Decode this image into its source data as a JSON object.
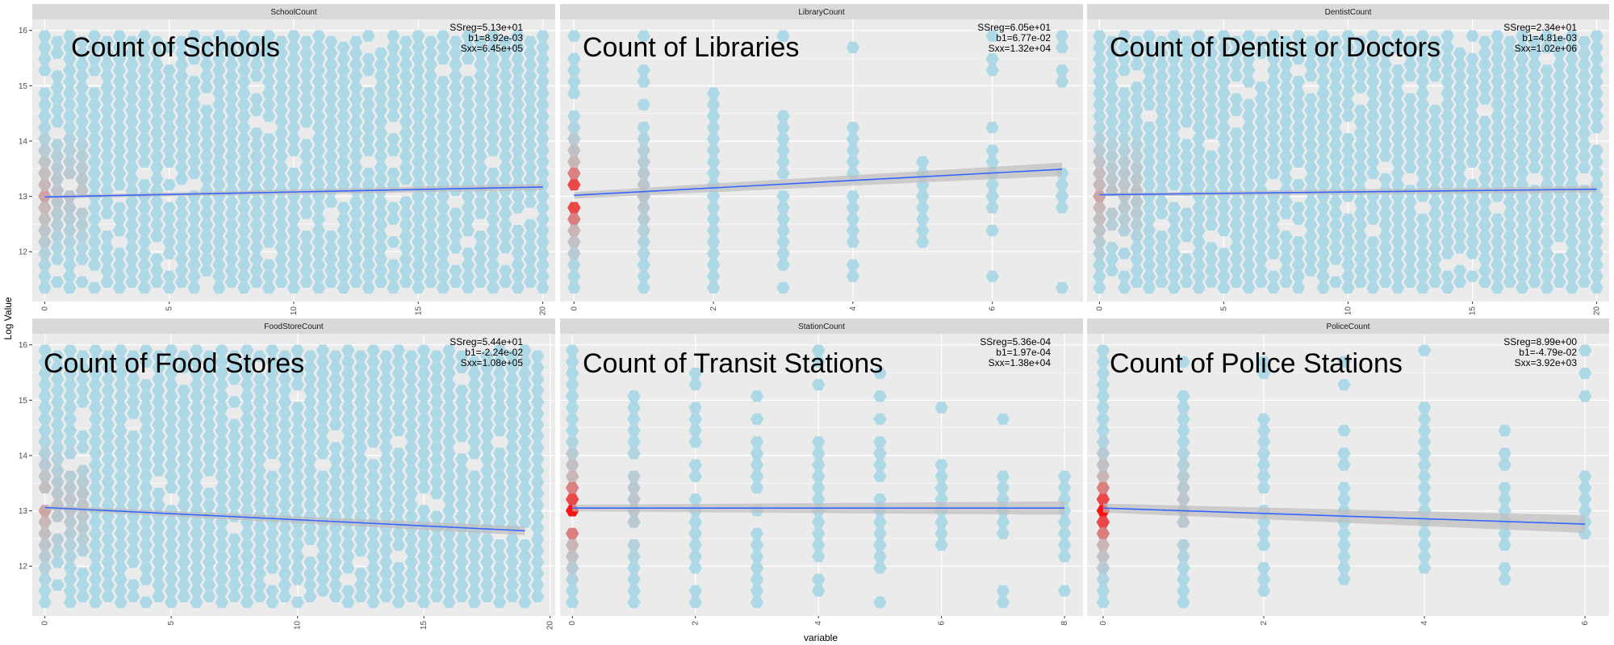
{
  "figure": {
    "ylabel": "Log Value",
    "xlabel": "variable"
  },
  "colors": {
    "panel_background": "#ebebeb",
    "strip_background": "#d9d9d9",
    "grid_major": "#ffffff",
    "hex_low": "#add8e6",
    "hex_mid": "#c9b6b6",
    "hex_high": "#ff0000",
    "fit_line": "#3366ff",
    "confidence_band": "#bdbdbd"
  },
  "chart_data": [
    {
      "type": "hexbin",
      "panel": "SchoolCount",
      "overlay_label": "Count of Schools",
      "stats": [
        "SSreg=5.13e+01",
        "b1=8.92e-03",
        "Sxx=6.45e+05"
      ],
      "xlim": [
        -0.5,
        20.5
      ],
      "ylim": [
        11.1,
        16.2
      ],
      "xticks": [
        0,
        5,
        10,
        15,
        20
      ],
      "xtick_labels": [
        "0",
        "5",
        "10",
        "15",
        "20"
      ],
      "yticks": [
        12,
        13,
        14,
        15,
        16
      ],
      "ytick_labels": [
        "12",
        "13",
        "14",
        "15",
        "16"
      ],
      "x_values": [
        0,
        1,
        2,
        3,
        4,
        5,
        6,
        7,
        8,
        9,
        10,
        11,
        12,
        13,
        14,
        15,
        16,
        17,
        18,
        19,
        20
      ],
      "y_range": [
        11.3,
        15.9
      ],
      "fit": {
        "x": [
          0,
          20
        ],
        "y": [
          12.99,
          13.17
        ]
      },
      "band_halfwidth": 0.03
    },
    {
      "type": "hexbin",
      "panel": "LibraryCount",
      "overlay_label": "Count of Libraries",
      "stats": [
        "SSreg=6.05e+01",
        "b1=6.77e-02",
        "Sxx=1.32e+04"
      ],
      "xlim": [
        -0.2,
        7.3
      ],
      "ylim": [
        11.1,
        16.2
      ],
      "xticks": [
        0,
        2,
        4,
        6
      ],
      "xtick_labels": [
        "0",
        "2",
        "4",
        "6"
      ],
      "yticks": [
        12,
        13,
        14,
        15,
        16
      ],
      "ytick_labels": [
        "12",
        "13",
        "14",
        "15",
        "16"
      ],
      "x_values": [
        0,
        1,
        2,
        3,
        4,
        5,
        6,
        7
      ],
      "y_range": [
        11.3,
        15.9
      ],
      "fit": {
        "x": [
          0,
          7
        ],
        "y": [
          13.02,
          13.49
        ]
      },
      "band_halfwidth": 0.06
    },
    {
      "type": "hexbin",
      "panel": "DentistCount",
      "overlay_label": "Count of Dentist or Doctors",
      "stats": [
        "SSreg=2.34e+01",
        "b1=4.81e-03",
        "Sxx=1.02e+06"
      ],
      "xlim": [
        -0.5,
        20.5
      ],
      "ylim": [
        11.1,
        16.2
      ],
      "xticks": [
        0,
        5,
        10,
        15,
        20
      ],
      "xtick_labels": [
        "0",
        "5",
        "10",
        "15",
        "20"
      ],
      "yticks": [
        12,
        13,
        14,
        15,
        16
      ],
      "ytick_labels": [
        "12",
        "13",
        "14",
        "15",
        "16"
      ],
      "x_values": [
        0,
        1,
        2,
        3,
        4,
        5,
        6,
        7,
        8,
        9,
        10,
        11,
        12,
        13,
        14,
        15,
        16,
        17,
        18,
        19,
        20
      ],
      "y_range": [
        11.3,
        15.9
      ],
      "fit": {
        "x": [
          0,
          20
        ],
        "y": [
          13.03,
          13.13
        ]
      },
      "band_halfwidth": 0.03
    },
    {
      "type": "hexbin",
      "panel": "FoodStoreCount",
      "overlay_label": "Count of Food Stores",
      "stats": [
        "SSreg=5.44e+01",
        "b1=-2.24e-02",
        "Sxx=1.08e+05"
      ],
      "xlim": [
        -0.5,
        20.2
      ],
      "ylim": [
        11.1,
        16.2
      ],
      "xticks": [
        0,
        5,
        10,
        15,
        20
      ],
      "xtick_labels": [
        "0",
        "5",
        "10",
        "15",
        "20"
      ],
      "yticks": [
        12,
        13,
        14,
        15,
        16
      ],
      "ytick_labels": [
        "12",
        "13",
        "14",
        "15",
        "16"
      ],
      "x_values": [
        0,
        1,
        2,
        3,
        4,
        5,
        6,
        7,
        8,
        9,
        10,
        11,
        12,
        13,
        14,
        15,
        16,
        17,
        18,
        19
      ],
      "y_range": [
        11.3,
        15.9
      ],
      "fit": {
        "x": [
          0,
          19
        ],
        "y": [
          13.06,
          12.64
        ]
      },
      "band_halfwidth": 0.04
    },
    {
      "type": "hexbin",
      "panel": "StationCount",
      "overlay_label": "Count of Transit Stations",
      "stats": [
        "SSreg=5.36e-04",
        "b1=1.97e-04",
        "Sxx=1.38e+04"
      ],
      "xlim": [
        -0.2,
        8.3
      ],
      "ylim": [
        11.1,
        16.2
      ],
      "xticks": [
        0,
        2,
        4,
        6,
        8
      ],
      "xtick_labels": [
        "0",
        "2",
        "4",
        "6",
        "8"
      ],
      "yticks": [
        12,
        13,
        14,
        15,
        16
      ],
      "ytick_labels": [
        "12",
        "13",
        "14",
        "15",
        "16"
      ],
      "x_values": [
        0,
        1,
        2,
        3,
        4,
        5,
        6,
        7,
        8
      ],
      "y_range": [
        11.3,
        15.9
      ],
      "fit": {
        "x": [
          0,
          8
        ],
        "y": [
          13.05,
          13.05
        ]
      },
      "band_halfwidth": 0.06
    },
    {
      "type": "hexbin",
      "panel": "PoliceCount",
      "overlay_label": "Count of Police Stations",
      "stats": [
        "SSreg=8.99e+00",
        "b1=-4.79e-02",
        "Sxx=3.92e+03"
      ],
      "xlim": [
        -0.2,
        6.3
      ],
      "ylim": [
        11.1,
        16.2
      ],
      "xticks": [
        0,
        2,
        4,
        6
      ],
      "xtick_labels": [
        "0",
        "2",
        "4",
        "6"
      ],
      "yticks": [
        12,
        13,
        14,
        15,
        16
      ],
      "ytick_labels": [
        "12",
        "13",
        "14",
        "15",
        "16"
      ],
      "x_values": [
        0,
        1,
        2,
        3,
        4,
        5,
        6
      ],
      "y_range": [
        11.3,
        15.9
      ],
      "fit": {
        "x": [
          0,
          6
        ],
        "y": [
          13.05,
          12.76
        ]
      },
      "band_halfwidth": 0.08
    }
  ]
}
